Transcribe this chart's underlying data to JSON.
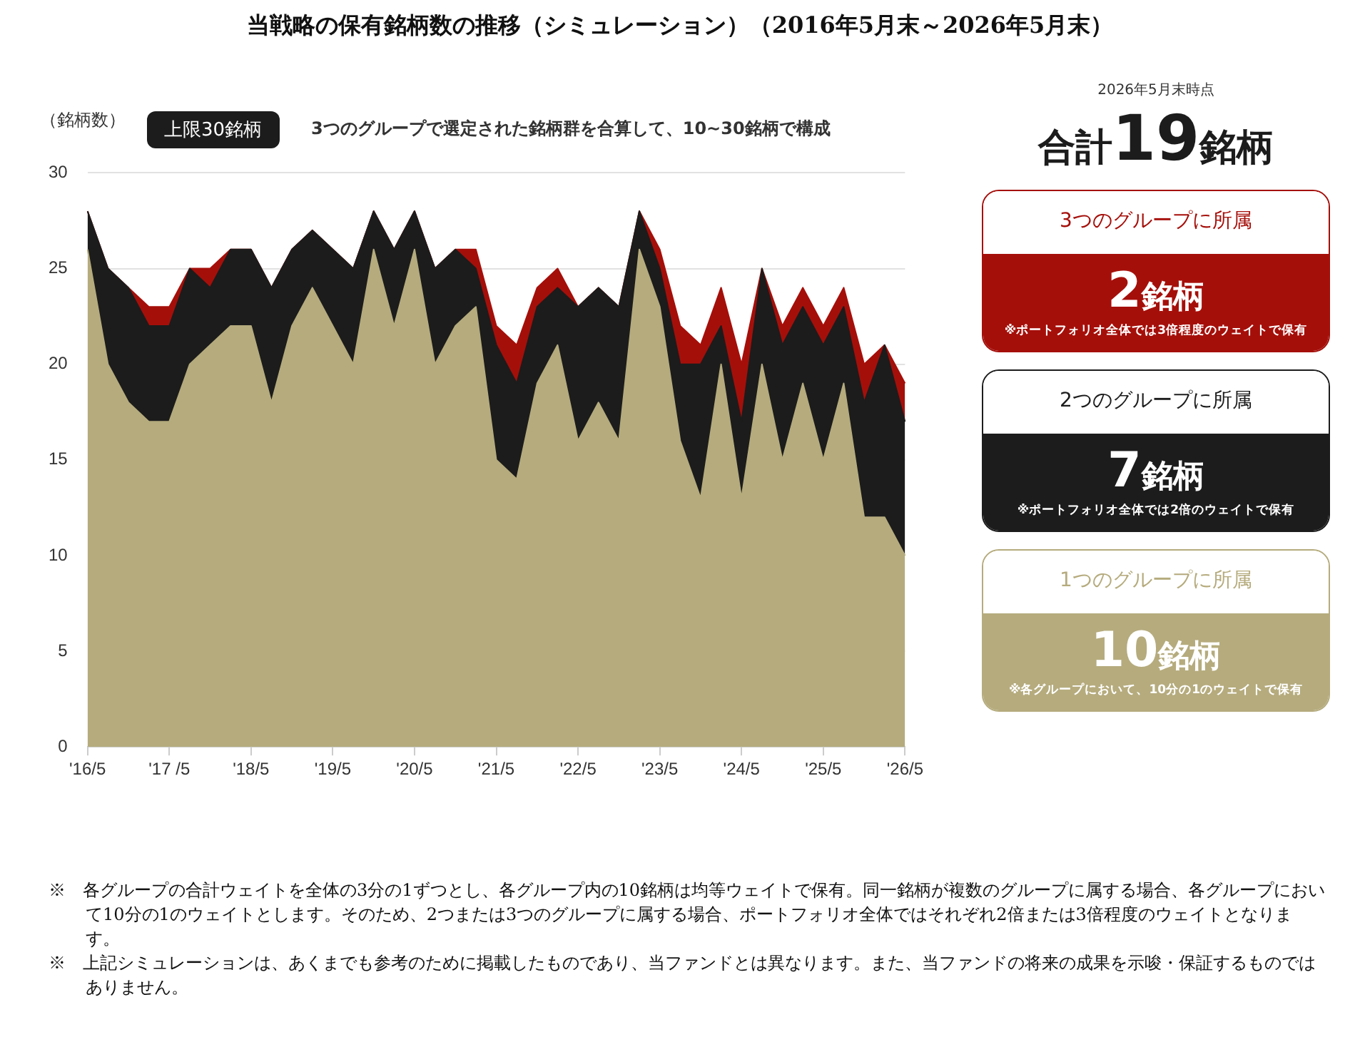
{
  "chart_data": {
    "type": "area",
    "stacked": true,
    "title": "当戦略の保有銘柄数の推移（シミュレーション）（2016年5月末～2026年5月末）",
    "ylabel": "（銘柄数）",
    "categories": [
      "'16/5",
      null,
      null,
      null,
      "'17 /5",
      null,
      null,
      null,
      "'18/5",
      null,
      null,
      null,
      "'19/5",
      null,
      null,
      null,
      "'20/5",
      null,
      null,
      null,
      "'21/5",
      null,
      null,
      null,
      "'22/5",
      null,
      null,
      null,
      "'23/5",
      null,
      null,
      null,
      "'24/5",
      null,
      null,
      null,
      "'25/5",
      null,
      null,
      null,
      "'26/5"
    ],
    "series": [
      {
        "name": "1つのグループに所属",
        "color": "#b5ab7d",
        "values": [
          26,
          20,
          18,
          17,
          17,
          20,
          21,
          22,
          22,
          18,
          22,
          24,
          22,
          20,
          26,
          22,
          26,
          20,
          22,
          23,
          15,
          14,
          19,
          21,
          16,
          18,
          16,
          26,
          23,
          16,
          13,
          20,
          13,
          20,
          15,
          19,
          15,
          19,
          12,
          12,
          10
        ]
      },
      {
        "name": "2つのグループに所属",
        "color": "#1c1c1c",
        "values": [
          2,
          5,
          6,
          5,
          5,
          5,
          3,
          4,
          4,
          6,
          4,
          3,
          4,
          5,
          2,
          4,
          2,
          5,
          4,
          2,
          6,
          5,
          4,
          3,
          7,
          6,
          7,
          2,
          2,
          4,
          7,
          2,
          4,
          5,
          6,
          4,
          6,
          4,
          6,
          9,
          7
        ]
      },
      {
        "name": "3つのグループに所属",
        "color": "#a50f0a",
        "values": [
          0,
          0,
          0,
          1,
          1,
          0,
          1,
          0,
          0,
          0,
          0,
          0,
          0,
          0,
          0,
          0,
          0,
          0,
          0,
          1,
          1,
          2,
          1,
          1,
          0,
          0,
          0,
          0,
          1,
          2,
          1,
          2,
          3,
          0,
          1,
          1,
          1,
          1,
          2,
          0,
          2
        ]
      }
    ],
    "ylim": [
      0,
      30
    ],
    "yticks": [
      0,
      5,
      10,
      15,
      20,
      25,
      30
    ],
    "grid": "y",
    "marker": "none",
    "legend": false,
    "annotations": [
      "上限30銘柄",
      "3つのグループで選定された銘柄群を合算して、10~30銘柄で構成",
      "2026年5月末時点",
      "合計19銘柄",
      "2銘柄",
      "※ポートフォリオ全体では3倍程度のウェイトで保有",
      "7銘柄",
      "※ポートフォリオ全体では2倍のウェイトで保有",
      "10銘柄",
      "※各グループにおいて、10分の1のウェイトで保有",
      "※　各グループの合計ウェイトを全体の3分の1ずつとし、各グループ内の10銘柄は均等ウェイトで保有。同一銘柄が複数のグループに属する場合、各グループにおいて10分の1のウェイトとします。そのため、2つまたは3つのグループに属する場合、ポートフォリオ全体ではそれぞれ2倍または3倍程度のウェイトとなります。",
      "※　上記シミュレーションは、あくまでも参考のために掲載したものであり、当ファンドとは異なります。また、当ファンドの将来の成果を示唆・保証するものではありません。"
    ]
  }
}
